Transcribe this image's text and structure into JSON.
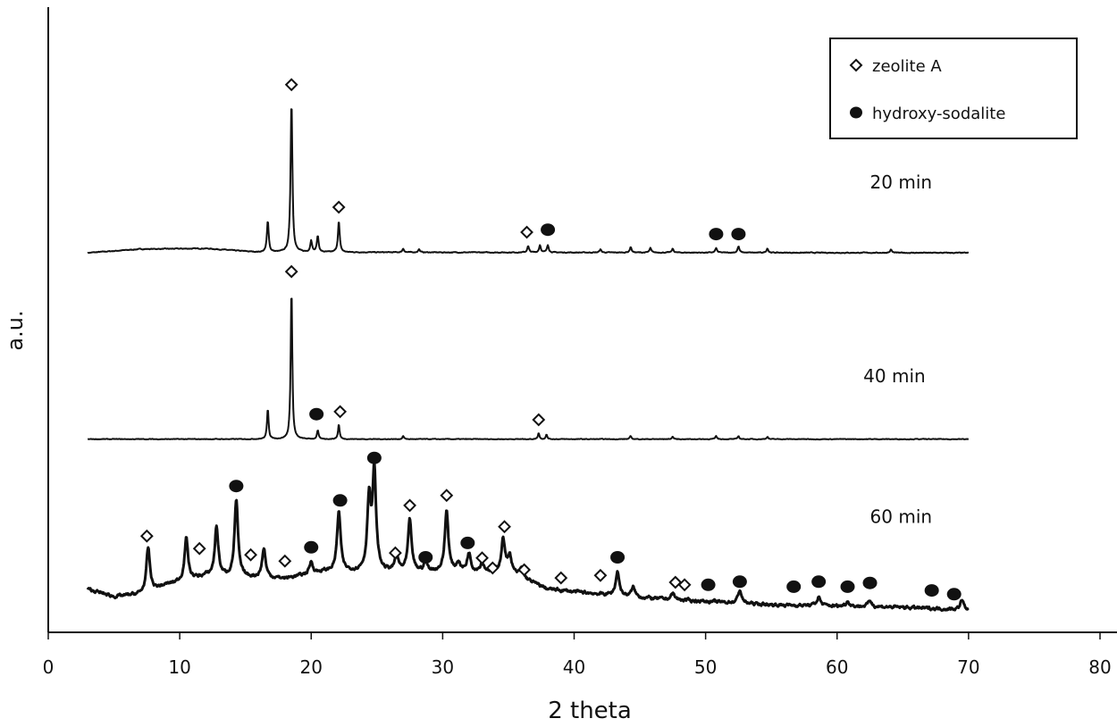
{
  "chart_data": {
    "type": "line",
    "title": "",
    "xlabel": "2 theta",
    "ylabel": "a.u.",
    "xlim": [
      0,
      80
    ],
    "ylim": [
      0,
      100
    ],
    "xticks": [
      0,
      10,
      20,
      30,
      40,
      50,
      60,
      70,
      80
    ],
    "tick_labels": [
      "0",
      "10",
      "20",
      "30",
      "40",
      "50",
      "60",
      "70",
      "80"
    ],
    "grid": false,
    "legend": {
      "placement": "top-right",
      "entries": [
        {
          "label": "zeolite A",
          "marker": "open-diamond"
        },
        {
          "label": "hydroxy-sodalite",
          "marker": "filled-circle"
        }
      ]
    },
    "series": [
      {
        "name": "20 min",
        "x_range": [
          3,
          70
        ],
        "baseline": [
          [
            3,
            60.7
          ],
          [
            7,
            61.3
          ],
          [
            12,
            61.4
          ],
          [
            16,
            60.8
          ],
          [
            70,
            60.7
          ]
        ],
        "noise": 0.12,
        "peak_width": 0.16,
        "peaks": [
          [
            16.7,
            5.0
          ],
          [
            18.5,
            24.3
          ],
          [
            20.0,
            1.9
          ],
          [
            20.5,
            2.6
          ],
          [
            22.1,
            5.0
          ],
          [
            27.0,
            0.6
          ],
          [
            28.2,
            0.5
          ],
          [
            36.5,
            1.0
          ],
          [
            37.4,
            1.2
          ],
          [
            38.0,
            1.2
          ],
          [
            42.0,
            0.5
          ],
          [
            44.3,
            0.9
          ],
          [
            45.8,
            0.7
          ],
          [
            47.5,
            0.6
          ],
          [
            50.8,
            0.7
          ],
          [
            52.5,
            1.0
          ],
          [
            54.7,
            0.7
          ],
          [
            64.1,
            0.5
          ]
        ],
        "label_pos": [
          62.5,
          71
        ]
      },
      {
        "name": "40 min",
        "x_range": [
          3,
          70
        ],
        "baseline": [
          [
            3,
            30.9
          ],
          [
            70,
            30.9
          ]
        ],
        "noise": 0.1,
        "peak_width": 0.14,
        "peaks": [
          [
            16.7,
            4.9
          ],
          [
            18.5,
            24.3
          ],
          [
            20.5,
            1.4
          ],
          [
            22.1,
            2.4
          ],
          [
            27.0,
            0.5
          ],
          [
            37.3,
            1.0
          ],
          [
            37.9,
            0.7
          ],
          [
            44.3,
            0.5
          ],
          [
            47.5,
            0.4
          ],
          [
            50.8,
            0.5
          ],
          [
            52.5,
            0.5
          ],
          [
            54.7,
            0.4
          ]
        ],
        "label_pos": [
          62,
          40
        ]
      },
      {
        "name": "60 min",
        "x_range": [
          3,
          70
        ],
        "baseline": [
          [
            3,
            6.9
          ],
          [
            5,
            5.7
          ],
          [
            7,
            6.1
          ],
          [
            9,
            7.6
          ],
          [
            12,
            9.0
          ],
          [
            18,
            8.6
          ],
          [
            21,
            9.7
          ],
          [
            35,
            9.7
          ],
          [
            38,
            6.9
          ],
          [
            42,
            6.1
          ],
          [
            46,
            5.4
          ],
          [
            55,
            4.4
          ],
          [
            65,
            4.0
          ],
          [
            70,
            3.6
          ]
        ],
        "noise": 0.45,
        "peak_width": 0.32,
        "peaks": [
          [
            7.6,
            6.9
          ],
          [
            10.5,
            6.7
          ],
          [
            12.8,
            7.9
          ],
          [
            14.3,
            12.1
          ],
          [
            16.4,
            4.6
          ],
          [
            20.0,
            1.9
          ],
          [
            22.1,
            9.6
          ],
          [
            24.4,
            11.4
          ],
          [
            24.8,
            15.7
          ],
          [
            26.5,
            2.4
          ],
          [
            27.5,
            8.1
          ],
          [
            28.7,
            1.4
          ],
          [
            30.3,
            9.7
          ],
          [
            31.2,
            1.4
          ],
          [
            32.0,
            2.9
          ],
          [
            33.0,
            1.4
          ],
          [
            34.6,
            5.3
          ],
          [
            35.1,
            2.6
          ],
          [
            36.0,
            1.4
          ],
          [
            43.3,
            3.9
          ],
          [
            44.5,
            1.5
          ],
          [
            47.5,
            1.0
          ],
          [
            52.6,
            2.1
          ],
          [
            58.6,
            1.4
          ],
          [
            60.8,
            0.8
          ],
          [
            62.5,
            1.0
          ],
          [
            69.5,
            1.5
          ]
        ],
        "label_pos": [
          62.5,
          17.5
        ]
      }
    ],
    "annotations": [
      {
        "phase": "zeolite A",
        "x": 18.5,
        "y": 87.6
      },
      {
        "phase": "zeolite A",
        "x": 22.1,
        "y": 68.0
      },
      {
        "phase": "zeolite A",
        "x": 36.4,
        "y": 64.0
      },
      {
        "phase": "hydroxy-sodalite",
        "x": 38.0,
        "y": 64.4
      },
      {
        "phase": "hydroxy-sodalite",
        "x": 50.8,
        "y": 63.7
      },
      {
        "phase": "hydroxy-sodalite",
        "x": 52.5,
        "y": 63.7
      },
      {
        "phase": "zeolite A",
        "x": 18.5,
        "y": 57.7
      },
      {
        "phase": "hydroxy-sodalite",
        "x": 20.4,
        "y": 34.9
      },
      {
        "phase": "zeolite A",
        "x": 22.2,
        "y": 35.3
      },
      {
        "phase": "zeolite A",
        "x": 37.3,
        "y": 34.0
      },
      {
        "phase": "zeolite A",
        "x": 7.5,
        "y": 15.4
      },
      {
        "phase": "zeolite A",
        "x": 11.5,
        "y": 13.4
      },
      {
        "phase": "hydroxy-sodalite",
        "x": 14.3,
        "y": 23.4
      },
      {
        "phase": "zeolite A",
        "x": 15.4,
        "y": 12.4
      },
      {
        "phase": "zeolite A",
        "x": 18.0,
        "y": 11.4
      },
      {
        "phase": "hydroxy-sodalite",
        "x": 20.0,
        "y": 13.6
      },
      {
        "phase": "hydroxy-sodalite",
        "x": 22.2,
        "y": 21.1
      },
      {
        "phase": "hydroxy-sodalite",
        "x": 24.8,
        "y": 27.9
      },
      {
        "phase": "zeolite A",
        "x": 26.4,
        "y": 12.7
      },
      {
        "phase": "zeolite A",
        "x": 27.5,
        "y": 20.3
      },
      {
        "phase": "hydroxy-sodalite",
        "x": 28.7,
        "y": 12.0
      },
      {
        "phase": "zeolite A",
        "x": 30.3,
        "y": 21.9
      },
      {
        "phase": "hydroxy-sodalite",
        "x": 31.9,
        "y": 14.3
      },
      {
        "phase": "zeolite A",
        "x": 33.0,
        "y": 11.9
      },
      {
        "phase": "zeolite A",
        "x": 33.8,
        "y": 10.3
      },
      {
        "phase": "zeolite A",
        "x": 34.7,
        "y": 16.9
      },
      {
        "phase": "zeolite A",
        "x": 36.2,
        "y": 10.0
      },
      {
        "phase": "zeolite A",
        "x": 39.0,
        "y": 8.7
      },
      {
        "phase": "zeolite A",
        "x": 42.0,
        "y": 9.1
      },
      {
        "phase": "hydroxy-sodalite",
        "x": 43.3,
        "y": 12.0
      },
      {
        "phase": "zeolite A",
        "x": 47.7,
        "y": 8.0
      },
      {
        "phase": "zeolite A",
        "x": 48.4,
        "y": 7.6
      },
      {
        "phase": "hydroxy-sodalite",
        "x": 50.2,
        "y": 7.6
      },
      {
        "phase": "hydroxy-sodalite",
        "x": 52.6,
        "y": 8.1
      },
      {
        "phase": "hydroxy-sodalite",
        "x": 56.7,
        "y": 7.3
      },
      {
        "phase": "hydroxy-sodalite",
        "x": 58.6,
        "y": 8.1
      },
      {
        "phase": "hydroxy-sodalite",
        "x": 60.8,
        "y": 7.3
      },
      {
        "phase": "hydroxy-sodalite",
        "x": 62.5,
        "y": 7.9
      },
      {
        "phase": "hydroxy-sodalite",
        "x": 67.2,
        "y": 6.7
      },
      {
        "phase": "hydroxy-sodalite",
        "x": 68.9,
        "y": 6.1
      }
    ],
    "colors": {
      "line": "#111111",
      "background": "#ffffff"
    }
  }
}
